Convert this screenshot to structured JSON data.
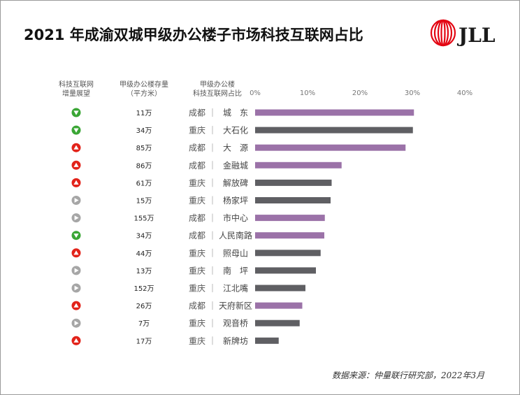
{
  "title": "2021 年成渝双城甲级办公楼子市场科技互联网占比",
  "source": "数据来源：仲量联行研究部，2022年3月",
  "logo": {
    "text": "JLL",
    "brand_color": "#e30613"
  },
  "colors": {
    "chengdu_bar": "#9b72a8",
    "chongqing_bar": "#5f5f63",
    "up_icon": "#e2231a",
    "down_icon": "#3aa635",
    "flat_icon": "#a6a6a6"
  },
  "chart_data": {
    "type": "bar",
    "orientation": "horizontal",
    "column_headers": {
      "outlook": [
        "科技互联网",
        "增量展望"
      ],
      "stock": [
        "甲级办公楼存量",
        "（平方米）"
      ],
      "share": [
        "甲级办公楼",
        "科技互联网占比"
      ]
    },
    "x_ticks": [
      "0%",
      "10%",
      "20%",
      "30%",
      "40%"
    ],
    "xlim": [
      0,
      40
    ],
    "grid": false,
    "rows": [
      {
        "outlook": "down",
        "stock": "11万",
        "city": "成都",
        "district": "城　东",
        "value": 30.3
      },
      {
        "outlook": "down",
        "stock": "34万",
        "city": "重庆",
        "district": "大石化",
        "value": 30.1
      },
      {
        "outlook": "up",
        "stock": "85万",
        "city": "成都",
        "district": "大　源",
        "value": 28.7
      },
      {
        "outlook": "up",
        "stock": "86万",
        "city": "成都",
        "district": "金融城",
        "value": 16.5
      },
      {
        "outlook": "up",
        "stock": "61万",
        "city": "重庆",
        "district": "解放碑",
        "value": 14.6
      },
      {
        "outlook": "flat",
        "stock": "15万",
        "city": "重庆",
        "district": "杨家坪",
        "value": 14.4
      },
      {
        "outlook": "flat",
        "stock": "155万",
        "city": "成都",
        "district": "市中心",
        "value": 13.3
      },
      {
        "outlook": "down",
        "stock": "34万",
        "city": "成都",
        "district": "人民南路",
        "value": 13.2
      },
      {
        "outlook": "up",
        "stock": "44万",
        "city": "重庆",
        "district": "照母山",
        "value": 12.5
      },
      {
        "outlook": "flat",
        "stock": "13万",
        "city": "重庆",
        "district": "南　坪",
        "value": 11.6
      },
      {
        "outlook": "flat",
        "stock": "152万",
        "city": "重庆",
        "district": "江北嘴",
        "value": 9.6
      },
      {
        "outlook": "up",
        "stock": "26万",
        "city": "成都",
        "district": "天府新区",
        "value": 9.0
      },
      {
        "outlook": "flat",
        "stock": "7万",
        "city": "重庆",
        "district": "观音桥",
        "value": 8.5
      },
      {
        "outlook": "up",
        "stock": "17万",
        "city": "重庆",
        "district": "新牌坊",
        "value": 4.5
      }
    ]
  }
}
